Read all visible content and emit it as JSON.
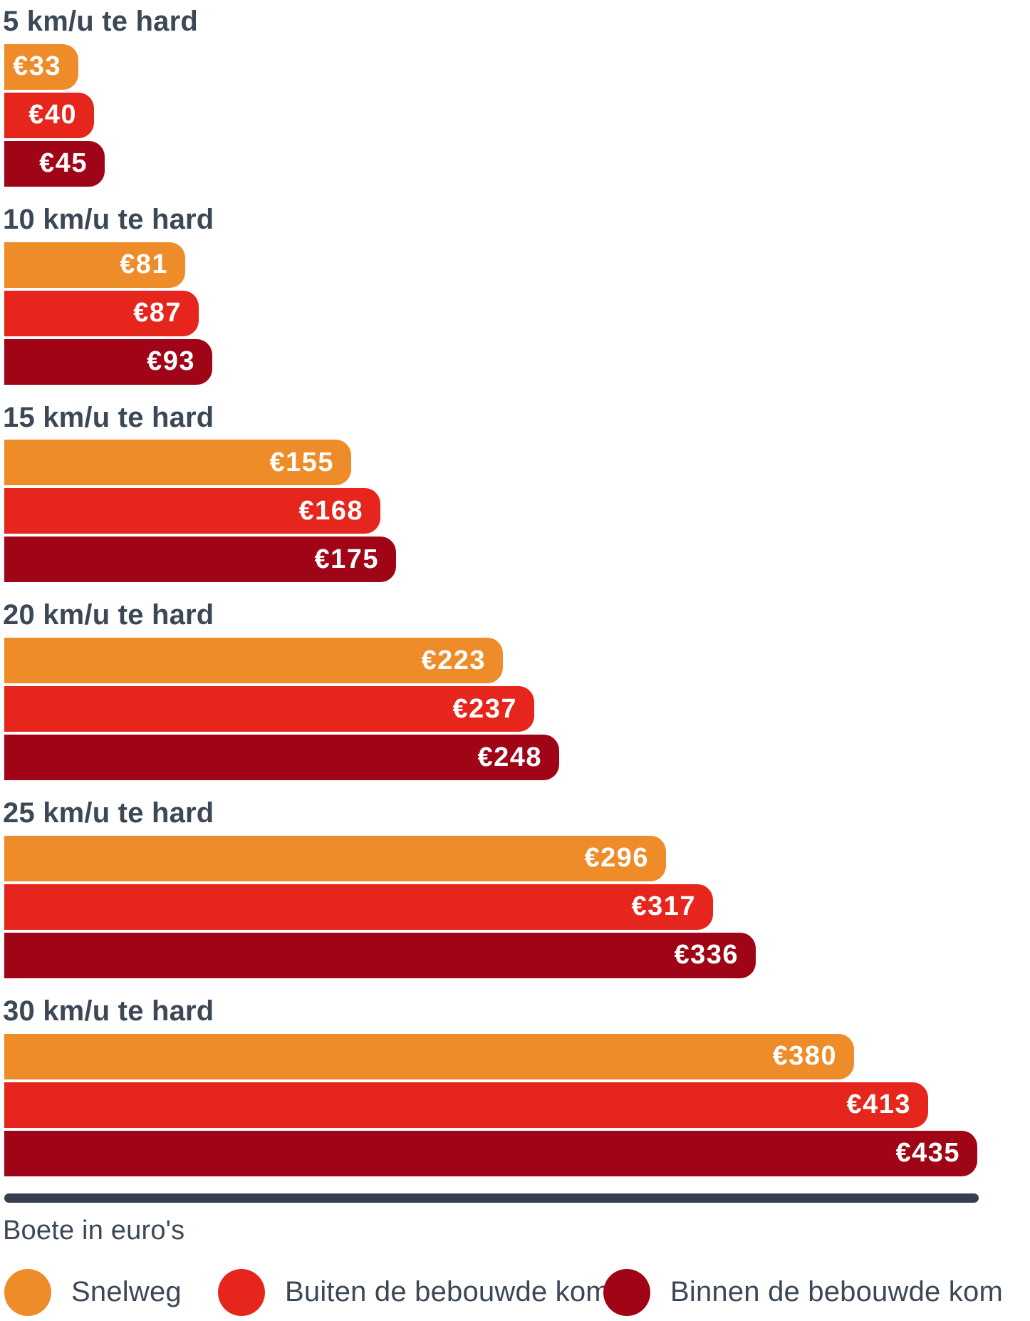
{
  "chart_data": {
    "type": "bar",
    "orientation": "horizontal",
    "title": "",
    "xlabel": "Boete in euro's",
    "value_prefix": "€",
    "xlim": [
      0,
      435
    ],
    "grid": false,
    "legend_position": "bottom",
    "categories": [
      "5 km/u te hard",
      "10 km/u te hard",
      "15 km/u te hard",
      "20 km/u te hard",
      "25 km/u te hard",
      "30 km/u te hard"
    ],
    "series": [
      {
        "name": "Snelweg",
        "color": "#ED8C29",
        "values": [
          33,
          81,
          155,
          223,
          296,
          380
        ]
      },
      {
        "name": "Buiten de bebouwde kom",
        "color": "#E6261D",
        "values": [
          40,
          87,
          168,
          237,
          317,
          413
        ]
      },
      {
        "name": "Binnen de bebouwde kom",
        "color": "#9F0516",
        "values": [
          45,
          93,
          175,
          248,
          336,
          435
        ]
      }
    ]
  },
  "colors": {
    "text": "#3C4856",
    "axis_line": "#353F4E",
    "bar_label": "#FFFFFF",
    "background": "#FFFFFF"
  }
}
